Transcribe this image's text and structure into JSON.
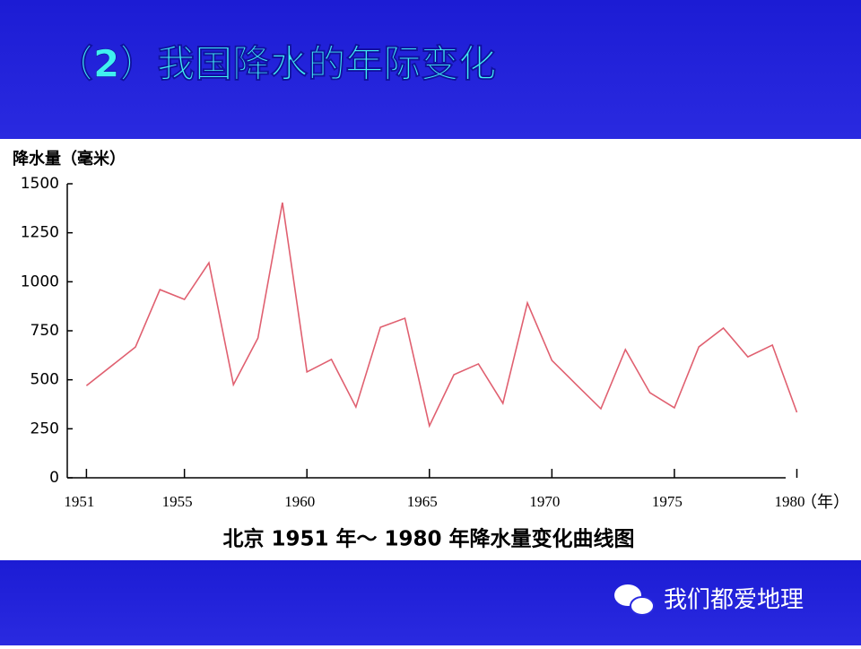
{
  "header": {
    "title": "（2）我国降水的年际变化"
  },
  "chart_data": {
    "type": "line",
    "caption": "北京 1951 年～ 1980 年降水量变化曲线图",
    "y_label": "降水量（毫米）",
    "x_label": "（年）",
    "x": [
      1951,
      1953,
      1954,
      1955,
      1956,
      1957,
      1958,
      1959,
      1960,
      1961,
      1962,
      1963,
      1964,
      1965,
      1966,
      1967,
      1968,
      1969,
      1970,
      1971,
      1972,
      1973,
      1974,
      1975,
      1976,
      1977,
      1978,
      1979,
      1980
    ],
    "series": [
      {
        "color": "#e06070",
        "values": [
          470,
          667,
          960,
          910,
          1097,
          475,
          713,
          1404,
          540,
          604,
          361,
          768,
          814,
          265,
          526,
          581,
          380,
          892,
          599,
          475,
          352,
          654,
          434,
          357,
          668,
          764,
          617,
          677,
          334
        ]
      }
    ],
    "xlim": [
      1950.4,
      1981.3
    ],
    "xticks": [
      1951,
      1955,
      1960,
      1965,
      1970,
      1975,
      1980
    ],
    "ylim": [
      0,
      1500
    ],
    "yticks": [
      0,
      250,
      500,
      750,
      1000,
      1250,
      1500
    ]
  },
  "footer": {
    "watermark": "我们都爱地理"
  }
}
